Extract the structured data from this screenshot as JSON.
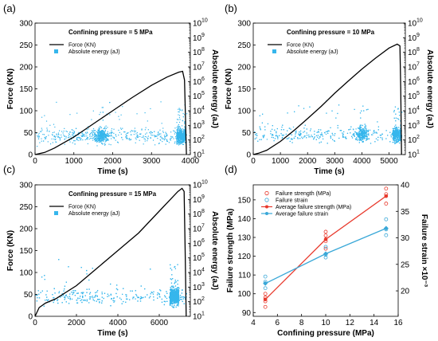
{
  "chart_data": [
    {
      "panel": "(a)",
      "type": "line",
      "annotation": "Confining pressure = 5 MPa",
      "xlabel": "Time (s)",
      "ylabel": "Force (KN)",
      "y2label": "Absolute energy (aJ)",
      "xlim": [
        0,
        4000
      ],
      "ylim": [
        0,
        300
      ],
      "y2lim": [
        10,
        10000000000
      ],
      "y2scale": "log",
      "xticks": [
        "0",
        "1000",
        "2000",
        "3000",
        "4000"
      ],
      "yticks": [
        "0",
        "50",
        "100",
        "150",
        "200",
        "250",
        "300"
      ],
      "y2ticks": [
        "10",
        "10",
        "10",
        "10",
        "10",
        "10",
        "10",
        "10",
        "10",
        "10"
      ],
      "y2tick_exp": [
        "1",
        "2",
        "3",
        "4",
        "5",
        "6",
        "7",
        "8",
        "9",
        "10"
      ],
      "legend": [
        "Force (KN)",
        "Absolute energy (aJ)"
      ],
      "series": [
        {
          "name": "Force (KN)",
          "type": "line",
          "x": [
            0,
            250,
            500,
            1000,
            1500,
            2000,
            2500,
            3000,
            3400,
            3700,
            3800,
            3850,
            3900
          ],
          "y": [
            0,
            5,
            15,
            40,
            70,
            100,
            130,
            158,
            177,
            188,
            190,
            170,
            0
          ]
        },
        {
          "name": "Absolute energy (aJ)",
          "type": "scatter",
          "density": {
            "x_end": 3900,
            "log_center": 2.3,
            "log_spread": 0.6,
            "clusters": [
              {
                "x": 1700,
                "weight": 1.5
              },
              {
                "x": 3800,
                "weight": 3
              }
            ],
            "count": 1400
          }
        }
      ]
    },
    {
      "panel": "(b)",
      "type": "line",
      "annotation": "Confining pressure = 10 MPa",
      "xlabel": "Time (s)",
      "ylabel": "Force (KN)",
      "y2label": "Absolute energy (aJ)",
      "xlim": [
        0,
        5600
      ],
      "ylim": [
        0,
        300
      ],
      "y2lim": [
        10,
        10000000000
      ],
      "y2scale": "log",
      "xticks": [
        "0",
        "1000",
        "2000",
        "3000",
        "4000",
        "5000"
      ],
      "yticks": [
        "0",
        "50",
        "100",
        "150",
        "200",
        "250",
        "300"
      ],
      "y2ticks": [
        "10",
        "10",
        "10",
        "10",
        "10",
        "10",
        "10",
        "10",
        "10",
        "10"
      ],
      "y2tick_exp": [
        "1",
        "2",
        "3",
        "4",
        "5",
        "6",
        "7",
        "8",
        "9",
        "10"
      ],
      "legend": [
        "Force (KN)",
        "Absolute energy (aJ)"
      ],
      "series": [
        {
          "name": "Force (KN)",
          "type": "line",
          "x": [
            0,
            200,
            500,
            1000,
            1500,
            2000,
            2500,
            3000,
            3500,
            4000,
            4500,
            5000,
            5300,
            5400,
            5430,
            5460
          ],
          "y": [
            0,
            3,
            10,
            30,
            55,
            82,
            110,
            140,
            168,
            195,
            220,
            243,
            252,
            248,
            150,
            0
          ]
        },
        {
          "name": "Absolute energy (aJ)",
          "type": "scatter",
          "density": {
            "x_end": 5460,
            "log_center": 2.4,
            "log_spread": 0.6,
            "clusters": [
              {
                "x": 4000,
                "weight": 1.5
              },
              {
                "x": 5350,
                "weight": 2.5
              }
            ],
            "count": 1600
          }
        }
      ]
    },
    {
      "panel": "(c)",
      "type": "line",
      "annotation": "Confining pressure = 15 MPa",
      "xlabel": "Time (s)",
      "ylabel": "Force (KN)",
      "y2label": "Absolute energy (aJ)",
      "xlim": [
        0,
        7500
      ],
      "ylim": [
        0,
        300
      ],
      "y2lim": [
        10,
        10000000000
      ],
      "y2scale": "log",
      "xticks": [
        "0",
        "2000",
        "4000",
        "6000"
      ],
      "yticks": [
        "0",
        "50",
        "100",
        "150",
        "200",
        "250",
        "300"
      ],
      "y2ticks": [
        "10",
        "10",
        "10",
        "10",
        "10",
        "10",
        "10",
        "10",
        "10",
        "10"
      ],
      "y2tick_exp": [
        "1",
        "2",
        "3",
        "4",
        "5",
        "6",
        "7",
        "8",
        "9",
        "10"
      ],
      "legend": [
        "Force (KN)",
        "Absolute energy (aJ)"
      ],
      "series": [
        {
          "name": "Force (KN)",
          "type": "line",
          "x": [
            0,
            200,
            500,
            1000,
            2000,
            3000,
            4000,
            5000,
            6000,
            6500,
            6900,
            7100,
            7200,
            7250,
            7300
          ],
          "y": [
            0,
            20,
            30,
            40,
            70,
            110,
            150,
            190,
            240,
            265,
            285,
            292,
            285,
            150,
            0
          ]
        },
        {
          "name": "Absolute energy (aJ)",
          "type": "scatter",
          "density": {
            "x_end": 7300,
            "log_center": 2.4,
            "log_spread": 0.65,
            "clusters": [
              {
                "x": 6800,
                "weight": 3
              }
            ],
            "count": 2200
          }
        }
      ]
    },
    {
      "panel": "(d)",
      "type": "scatter",
      "xlabel": "Confining pressure (MPa)",
      "ylabel": "Failure strength (MPa)",
      "y2label": "Failure strain ×10⁻³",
      "xlim": [
        4,
        16
      ],
      "ylim": [
        88,
        158
      ],
      "y2lim": [
        15.2,
        40
      ],
      "xticks": [
        "4",
        "6",
        "8",
        "10",
        "12",
        "14",
        "16"
      ],
      "yticks": [
        "90",
        "100",
        "110",
        "120",
        "130",
        "140",
        "150"
      ],
      "y2ticks": [
        "20",
        "25",
        "30",
        "35",
        "40"
      ],
      "legend": [
        "Failure strength (MPa)",
        "Failure strain",
        "Average failure strength (MPa)",
        "Average failure strain"
      ],
      "series": [
        {
          "name": "Failure strength (MPa)",
          "type": "scatter",
          "color": "#e8392c",
          "x": [
            5,
            5,
            5,
            5,
            10,
            10,
            10,
            10,
            15,
            15,
            15
          ],
          "y": [
            93,
            96,
            98,
            100,
            124,
            128,
            131,
            133,
            148,
            153,
            156
          ]
        },
        {
          "name": "Failure strain",
          "type": "scatter",
          "color": "#3aa8d8",
          "axis": "y2",
          "x": [
            5,
            5,
            5,
            10,
            10,
            10,
            15,
            15,
            15
          ],
          "y": [
            20.5,
            21.7,
            22.7,
            26.3,
            26.8,
            28.3,
            30.5,
            31.6,
            33.5
          ]
        },
        {
          "name": "Average failure strength (MPa)",
          "type": "line",
          "color": "#e8392c",
          "x": [
            5,
            10,
            15
          ],
          "y": [
            97,
            129,
            152
          ]
        },
        {
          "name": "Average failure strain",
          "type": "line",
          "color": "#3aa8d8",
          "axis": "y2",
          "x": [
            5,
            10,
            15
          ],
          "y": [
            21.4,
            27.0,
            31.8
          ]
        }
      ]
    }
  ]
}
